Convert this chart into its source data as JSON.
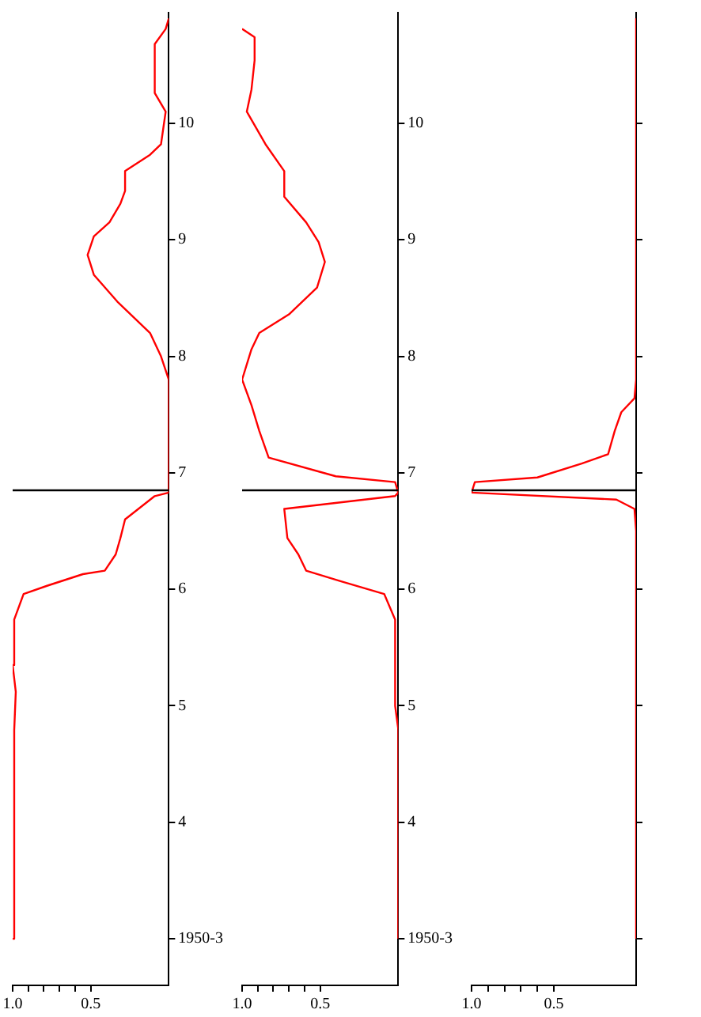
{
  "chart_data": [
    {
      "type": "line",
      "color": "#ff0000",
      "values": [
        3.0,
        4.79,
        5.12,
        5.35,
        5.74,
        5.96,
        6.03,
        6.13,
        6.16,
        6.3,
        6.44,
        6.6,
        6.8,
        6.83,
        7.8,
        8.0,
        8.2,
        8.47,
        8.7,
        8.87,
        9.03,
        9.15,
        9.31,
        9.42,
        9.59,
        9.73,
        9.82,
        10.1,
        10.26,
        10.68,
        10.81,
        10.9
      ],
      "x": [
        1.0,
        0.99,
        0.98,
        1.0,
        0.99,
        0.93,
        0.78,
        0.55,
        0.41,
        0.34,
        0.31,
        0.28,
        0.09,
        0,
        0,
        0.05,
        0.12,
        0.33,
        0.48,
        0.52,
        0.48,
        0.38,
        0.31,
        0.28,
        0.28,
        0.12,
        0.05,
        0.02,
        0.09,
        0.09,
        0.02,
        0
      ],
      "ylim": [
        2.6,
        10.95
      ],
      "yticks": [
        {
          "value": 3,
          "label": "1950-3"
        },
        4,
        5,
        6,
        7,
        8,
        9,
        10
      ],
      "xlim": [
        1,
        0
      ],
      "xticks": [
        {
          "value": 0.5,
          "label": "0.5"
        },
        {
          "value": 0.6,
          "label": null
        },
        {
          "value": 0.7,
          "label": null
        },
        {
          "value": 0.8,
          "label": null
        },
        {
          "value": 0.9,
          "label": null
        },
        {
          "value": 1,
          "label": "1.0"
        }
      ],
      "ref_lines": [
        {
          "axis": "y",
          "value": 6.85,
          "color": "#000000"
        }
      ],
      "grid": false
    },
    {
      "type": "line",
      "color": "#ff0000",
      "values": [
        3.0,
        4.8,
        5.0,
        5.74,
        5.96,
        6.07,
        6.16,
        6.3,
        6.44,
        6.69,
        6.8,
        6.83,
        6.92,
        6.97,
        7.13,
        7.36,
        7.58,
        7.8,
        8.06,
        8.2,
        8.36,
        8.59,
        8.81,
        8.98,
        9.15,
        9.37,
        9.59,
        9.82,
        10.1,
        10.29,
        10.54,
        10.74,
        10.81
      ],
      "x": [
        0,
        0,
        0.02,
        0.02,
        0.09,
        0.37,
        0.59,
        0.64,
        0.71,
        0.73,
        0.02,
        0,
        0.02,
        0.4,
        0.83,
        0.89,
        0.94,
        1.0,
        0.94,
        0.89,
        0.7,
        0.52,
        0.47,
        0.51,
        0.59,
        0.73,
        0.73,
        0.85,
        0.97,
        0.94,
        0.92,
        0.92,
        1.0
      ],
      "ylim": [
        2.6,
        10.95
      ],
      "yticks": [
        {
          "value": 3,
          "label": "1950-3"
        },
        4,
        5,
        6,
        7,
        8,
        9,
        10
      ],
      "xlim": [
        1,
        0
      ],
      "xticks": [
        {
          "value": 0.5,
          "label": "0.5"
        },
        {
          "value": 0.6,
          "label": null
        },
        {
          "value": 0.7,
          "label": null
        },
        {
          "value": 0.8,
          "label": null
        },
        {
          "value": 0.9,
          "label": null
        },
        {
          "value": 1,
          "label": "1.0"
        }
      ],
      "ref_lines": [
        {
          "axis": "y",
          "value": 6.85,
          "color": "#000000"
        }
      ],
      "grid": false
    },
    {
      "type": "line",
      "color": "#ff0000",
      "values": [
        3.0,
        6.5,
        6.69,
        6.77,
        6.83,
        6.92,
        6.96,
        7.08,
        7.16,
        7.36,
        7.52,
        7.64,
        7.8,
        10.9
      ],
      "x": [
        0,
        0,
        0.01,
        0.12,
        1.0,
        0.98,
        0.6,
        0.33,
        0.17,
        0.13,
        0.09,
        0.01,
        0,
        0
      ],
      "ylim": [
        2.6,
        10.95
      ],
      "yticks": [
        3,
        4,
        5,
        6,
        7,
        8,
        9,
        10
      ],
      "xlim": [
        1,
        0
      ],
      "xticks": [
        {
          "value": 0.5,
          "label": "0.5"
        },
        {
          "value": 0.6,
          "label": null
        },
        {
          "value": 0.7,
          "label": null
        },
        {
          "value": 0.8,
          "label": null
        },
        {
          "value": 0.9,
          "label": null
        },
        {
          "value": 1,
          "label": "1.0"
        }
      ],
      "ref_lines": [
        {
          "axis": "y",
          "value": 6.85,
          "color": "#000000"
        }
      ],
      "grid": false,
      "tick_labels": "x"
    }
  ]
}
